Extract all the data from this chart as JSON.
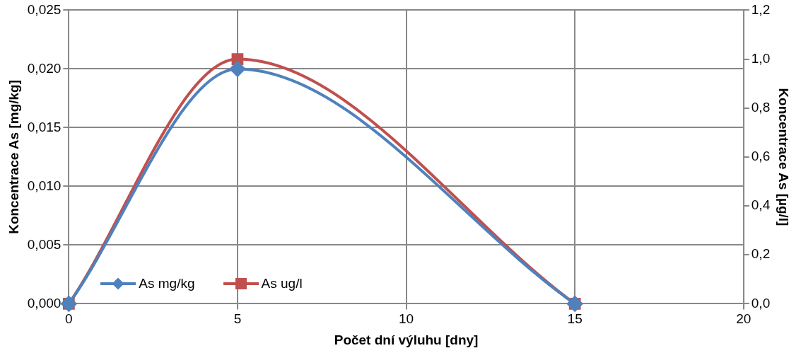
{
  "chart_data": {
    "type": "line",
    "xlabel": "Počet dní výluhu [dny]",
    "ylabel": "Koncentrace As [mg/kg]",
    "y2label": "Koncentrace As [µg/l]",
    "x": [
      0,
      5,
      15
    ],
    "xlim": [
      0,
      20
    ],
    "xticks": [
      0,
      5,
      10,
      15,
      20
    ],
    "ylim": [
      0,
      0.025
    ],
    "yticks": [
      {
        "value": 0,
        "label": "0,000"
      },
      {
        "value": 0.005,
        "label": "0,005"
      },
      {
        "value": 0.01,
        "label": "0,010"
      },
      {
        "value": 0.015,
        "label": "0,015"
      },
      {
        "value": 0.02,
        "label": "0,020"
      },
      {
        "value": 0.025,
        "label": "0,025"
      }
    ],
    "y2lim": [
      0,
      1.2
    ],
    "y2ticks": [
      {
        "value": 0,
        "label": "0,0"
      },
      {
        "value": 0.2,
        "label": "0,2"
      },
      {
        "value": 0.4,
        "label": "0,4"
      },
      {
        "value": 0.6,
        "label": "0,6"
      },
      {
        "value": 0.8,
        "label": "0,8"
      },
      {
        "value": 1,
        "label": "1,0"
      },
      {
        "value": 1.2,
        "label": "1,2"
      }
    ],
    "grid": true,
    "legend": "bottom left",
    "series": [
      {
        "name": "As mg/kg",
        "color": "#4f81bd",
        "marker": "diamond",
        "values": [
          0,
          0.02,
          0
        ]
      },
      {
        "name": "As ug/l",
        "color": "#c0504d",
        "marker": "square",
        "axis": "y2",
        "values": [
          0,
          1.0,
          0
        ]
      }
    ]
  }
}
